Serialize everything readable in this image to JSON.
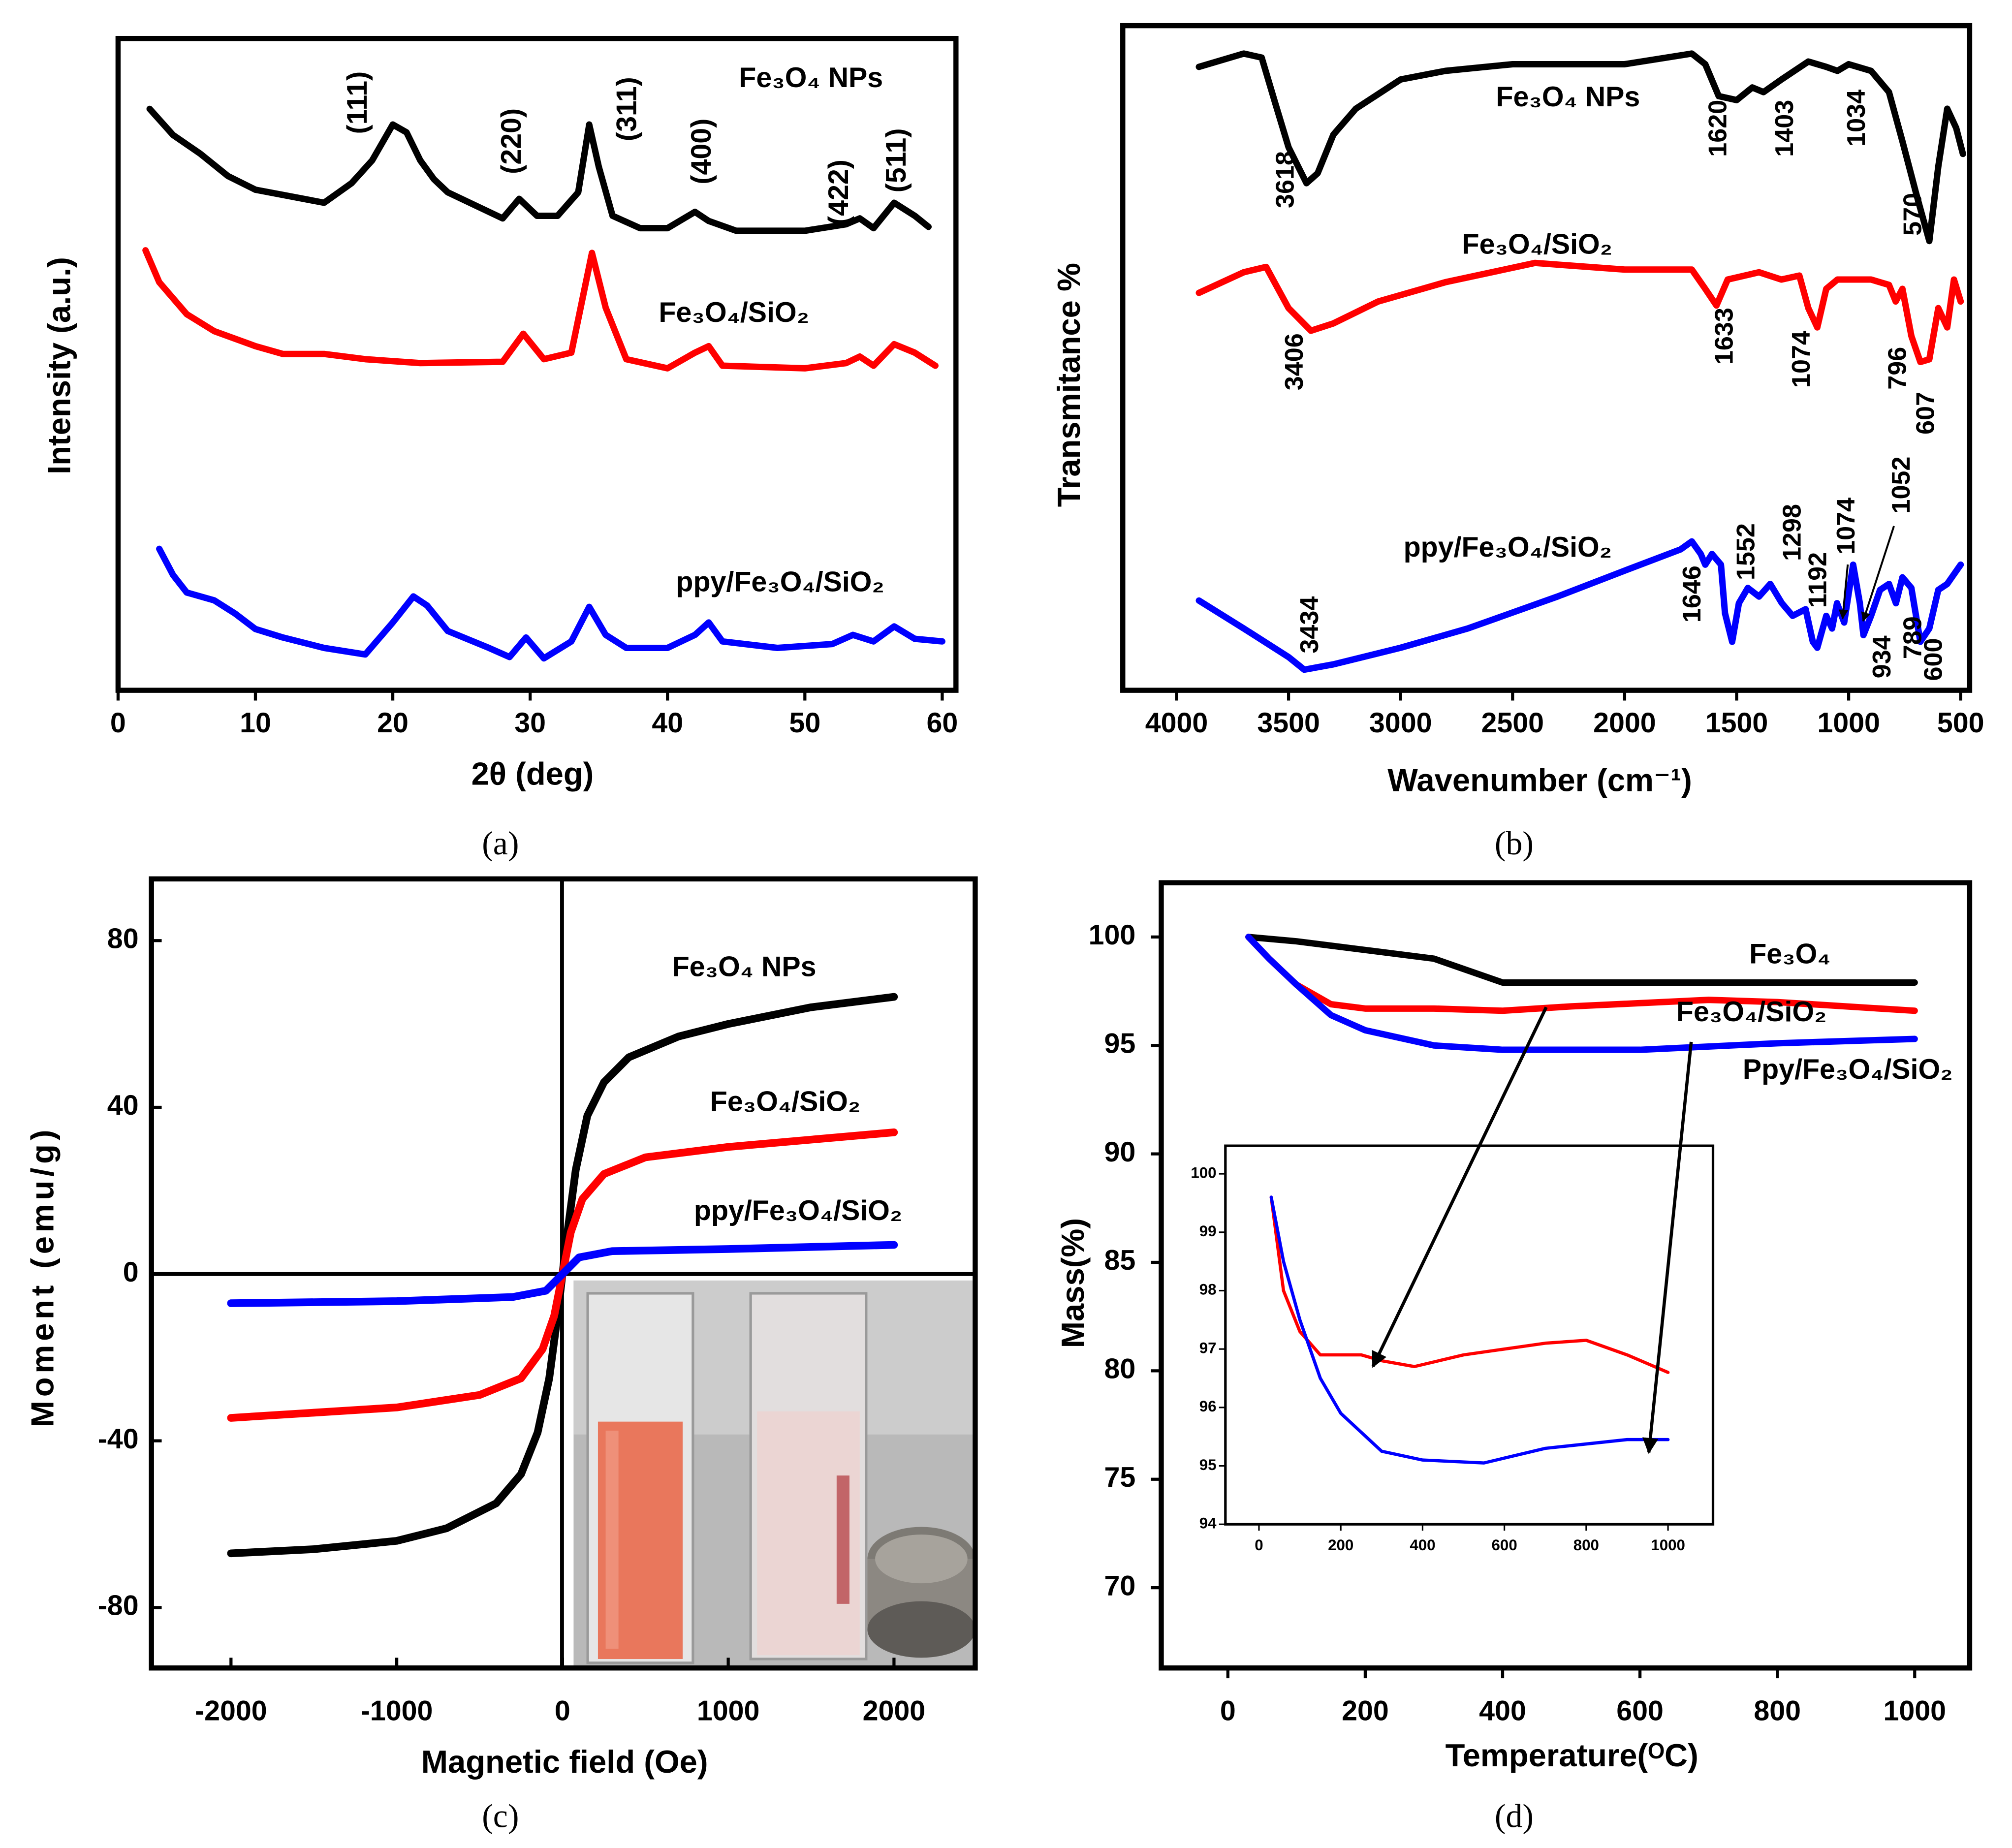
{
  "chart_data": [
    {
      "type": "line",
      "label": "(a)",
      "x_label": "2θ (deg)",
      "y_label": "Intensity (a.u.)",
      "xlim": [
        0,
        61
      ],
      "xticks": [
        0,
        10,
        20,
        30,
        40,
        50,
        60
      ],
      "ylim": [
        0,
        100
      ],
      "series": [
        {
          "name": "Fe₃O₄ NPs",
          "color": "#000000",
          "x": [
            2.3,
            4,
            6,
            8,
            10,
            12,
            15,
            17,
            18.5,
            20,
            21,
            22,
            23,
            24,
            26,
            28,
            29.2,
            30.5,
            32,
            33.5,
            34.3,
            35,
            36,
            38,
            40,
            42,
            43,
            45,
            50,
            53,
            54,
            55,
            56.5,
            58,
            59
          ],
          "values": [
            89.2,
            85.2,
            82.3,
            78.9,
            76.8,
            76.0,
            74.8,
            77.8,
            81.3,
            86.8,
            85.6,
            81.3,
            78.4,
            76.4,
            74.4,
            72.4,
            75.4,
            72.8,
            72.8,
            76.4,
            86.8,
            80.3,
            72.8,
            70.9,
            70.9,
            73.4,
            72.0,
            70.5,
            70.5,
            71.5,
            72.4,
            70.9,
            74.8,
            72.8,
            71.1
          ]
        },
        {
          "name": "Fe₃O₄/SiO₂",
          "color": "#ff0000",
          "x": [
            2,
            3,
            5,
            7,
            10,
            12,
            15,
            18,
            22,
            28,
            29.5,
            31,
            33,
            34.5,
            35.5,
            37,
            40,
            42,
            43,
            44,
            50,
            53,
            54,
            55,
            56.5,
            58,
            59.5
          ],
          "values": [
            67.5,
            62.6,
            57.7,
            55.1,
            52.8,
            51.6,
            51.6,
            50.8,
            50.2,
            50.4,
            54.7,
            50.8,
            51.8,
            67.1,
            58.7,
            50.8,
            49.4,
            51.8,
            52.8,
            49.8,
            49.4,
            50.2,
            51.2,
            49.8,
            53.1,
            51.8,
            49.8
          ]
        },
        {
          "name": "ppy/Fe₃O₄/SiO₂",
          "color": "#0000ff",
          "x": [
            3,
            4,
            5,
            7,
            8.5,
            10,
            12,
            15,
            18,
            20,
            21.5,
            22.5,
            24,
            27,
            28.5,
            29.7,
            31,
            33,
            34.3,
            35.5,
            37,
            40,
            42,
            43,
            44,
            48,
            52,
            53.5,
            55,
            56.5,
            58,
            60
          ],
          "values": [
            21.7,
            17.7,
            15.0,
            13.8,
            11.8,
            9.4,
            8.1,
            6.5,
            5.5,
            10.4,
            14.4,
            13.0,
            9.1,
            6.5,
            5.1,
            8.1,
            4.9,
            7.5,
            12.8,
            8.5,
            6.5,
            6.5,
            8.5,
            10.4,
            7.5,
            6.5,
            7.1,
            8.5,
            7.5,
            9.8,
            7.9,
            7.5
          ]
        }
      ],
      "annotations": [
        "(111)",
        "(220)",
        "(311)",
        "(400)",
        "(422)",
        "(511)"
      ]
    },
    {
      "type": "line",
      "label": "(b)",
      "x_label": "Wavenumber (cm⁻¹)",
      "y_label": "Transmitance %",
      "xlim": [
        4240,
        460
      ],
      "xticks": [
        4000,
        3500,
        3000,
        2500,
        2000,
        1500,
        1000,
        500
      ],
      "ylim": [
        0,
        100
      ],
      "series": [
        {
          "name": "Fe₃O₄ NPs",
          "color": "#000000",
          "x": [
            3900,
            3700,
            3620,
            3560,
            3500,
            3420,
            3370,
            3300,
            3200,
            3000,
            2800,
            2500,
            2000,
            1700,
            1640,
            1580,
            1500,
            1430,
            1380,
            1300,
            1180,
            1100,
            1050,
            1000,
            900,
            820,
            760,
            700,
            640,
            600,
            560,
            520,
            490
          ],
          "values": [
            93.8,
            95.8,
            95.2,
            88.4,
            81.7,
            76.3,
            77.8,
            83.6,
            87.5,
            91.9,
            93.2,
            94.2,
            94.2,
            95.8,
            94.2,
            89.4,
            88.8,
            90.7,
            90.0,
            91.9,
            94.6,
            93.8,
            93.2,
            94.2,
            93.2,
            90.0,
            82.6,
            74.9,
            67.6,
            78.8,
            87.5,
            84.6,
            80.7
          ]
        },
        {
          "name": "Fe₃O₄/SiO₂",
          "color": "#ff0000",
          "x": [
            3900,
            3700,
            3600,
            3500,
            3400,
            3300,
            3100,
            2800,
            2400,
            2000,
            1700,
            1640,
            1590,
            1540,
            1400,
            1300,
            1220,
            1180,
            1140,
            1100,
            1050,
            900,
            820,
            790,
            760,
            720,
            680,
            640,
            600,
            560,
            530,
            500
          ],
          "values": [
            59.8,
            62.9,
            63.7,
            57.5,
            54.1,
            55.2,
            58.5,
            61.4,
            64.3,
            63.3,
            63.3,
            60.4,
            57.9,
            61.8,
            62.9,
            61.8,
            62.4,
            57.5,
            54.6,
            60.4,
            61.8,
            61.8,
            61.0,
            58.5,
            60.4,
            53.3,
            49.4,
            49.8,
            57.5,
            54.6,
            61.8,
            58.5
          ]
        },
        {
          "name": "ppy/Fe₃O₄/SiO₂",
          "color": "#0000ff",
          "x": [
            3900,
            3700,
            3500,
            3430,
            3300,
            3000,
            2700,
            2300,
            2000,
            1750,
            1700,
            1660,
            1640,
            1610,
            1570,
            1552,
            1520,
            1490,
            1450,
            1400,
            1350,
            1298,
            1250,
            1192,
            1160,
            1140,
            1100,
            1074,
            1052,
            1020,
            980,
            950,
            934,
            900,
            860,
            820,
            789,
            760,
            720,
            680,
            640,
            600,
            560,
            500
          ],
          "values": [
            13.5,
            9.3,
            5.0,
            3.1,
            3.9,
            6.4,
            9.3,
            14.1,
            18.0,
            21.2,
            22.4,
            20.5,
            18.9,
            20.5,
            18.9,
            11.6,
            7.3,
            13.1,
            15.4,
            14.1,
            16.0,
            13.1,
            11.2,
            12.2,
            7.3,
            6.4,
            11.2,
            9.3,
            13.1,
            10.2,
            18.9,
            13.1,
            8.3,
            11.2,
            15.1,
            16.0,
            13.1,
            17.0,
            15.4,
            7.3,
            9.3,
            15.1,
            16.0,
            18.9
          ]
        }
      ],
      "annotations": [
        "3618",
        "1620",
        "1403",
        "1034",
        "570",
        "3406",
        "1633",
        "1074",
        "796",
        "607",
        "3434",
        "1646",
        "1552",
        "1298",
        "1192",
        "1074",
        "1052",
        "934",
        "789",
        "600"
      ]
    },
    {
      "type": "line",
      "label": "(c)",
      "x_label": "Magnetic field (Oe)",
      "y_label": "Moment (emu/g)",
      "xlim": [
        -2480,
        2490
      ],
      "xticks": [
        -2000,
        -1000,
        0,
        1000,
        2000
      ],
      "ylim": [
        -94.5,
        94.8
      ],
      "yticks": [
        80,
        40,
        0,
        -40,
        -80
      ],
      "series": [
        {
          "name": "Fe₃O₄ NPs",
          "color": "#000000",
          "x": [
            -2000,
            -1500,
            -1000,
            -700,
            -400,
            -250,
            -150,
            -80,
            -30,
            0,
            30,
            80,
            150,
            250,
            400,
            700,
            1000,
            1500,
            2000
          ],
          "values": [
            -67,
            -66,
            -64,
            -61,
            -55,
            -48,
            -38,
            -25,
            -10,
            0,
            10,
            25,
            38,
            46,
            52,
            57,
            60,
            64,
            66.5
          ]
        },
        {
          "name": "Fe₃O₄/SiO₂",
          "color": "#ff0000",
          "x": [
            -2000,
            -1000,
            -500,
            -250,
            -120,
            -50,
            0,
            50,
            120,
            250,
            500,
            1000,
            2000
          ],
          "values": [
            -34.5,
            -32,
            -29,
            -25,
            -18,
            -10,
            0,
            10,
            18,
            24,
            28,
            30.5,
            34
          ]
        },
        {
          "name": "ppy/Fe₃O₄/SiO₂",
          "color": "#0000ff",
          "x": [
            -2000,
            -1000,
            -300,
            -100,
            0,
            100,
            300,
            1000,
            2000
          ],
          "values": [
            -7,
            -6.5,
            -5.5,
            -4,
            0,
            4,
            5.5,
            6,
            7
          ]
        }
      ]
    },
    {
      "type": "line",
      "label": "(d)",
      "x_label": "Temperature(ᴼC)",
      "y_label": "Mass(%)",
      "xlim": [
        -97,
        1080
      ],
      "xticks": [
        0,
        200,
        400,
        600,
        800,
        1000
      ],
      "ylim": [
        66.3,
        102.5
      ],
      "yticks": [
        70,
        75,
        80,
        85,
        90,
        95,
        100
      ],
      "series": [
        {
          "name": "Fe₃O₄",
          "color": "#000000",
          "x": [
            30,
            100,
            200,
            300,
            400,
            600,
            1000
          ],
          "values": [
            100,
            99.8,
            99.4,
            99.0,
            97.9,
            97.9,
            97.9
          ]
        },
        {
          "name": "Fe₃O₄/SiO₂",
          "color": "#ff0000",
          "x": [
            30,
            60,
            100,
            150,
            200,
            300,
            400,
            500,
            700,
            800,
            1000
          ],
          "values": [
            100,
            99,
            97.8,
            96.9,
            96.7,
            96.7,
            96.6,
            96.8,
            97.1,
            97.0,
            96.6
          ]
        },
        {
          "name": "Ppy/Fe₃O₄/SiO₂",
          "color": "#0000ff",
          "x": [
            30,
            60,
            100,
            150,
            200,
            300,
            400,
            600,
            800,
            1000
          ],
          "values": [
            100,
            99,
            97.8,
            96.4,
            95.7,
            95.0,
            94.8,
            94.8,
            95.1,
            95.3
          ]
        }
      ],
      "inset": {
        "xlim": [
          -82,
          1110
        ],
        "xticks": [
          0,
          200,
          400,
          600,
          800,
          1000
        ],
        "ylim": [
          94.0,
          100.48
        ],
        "yticks": [
          94,
          95,
          96,
          97,
          98,
          99,
          100
        ],
        "series": [
          {
            "color": "#ff0000",
            "x": [
              30,
              60,
              100,
              150,
              200,
              250,
              300,
              380,
              500,
              700,
              800,
              900,
              1000
            ],
            "values": [
              99.6,
              98,
              97.3,
              96.9,
              96.9,
              96.9,
              96.8,
              96.7,
              96.9,
              97.1,
              97.15,
              96.9,
              96.6
            ]
          },
          {
            "color": "#0000ff",
            "x": [
              30,
              60,
              100,
              150,
              200,
              300,
              400,
              550,
              700,
              900,
              1000
            ],
            "values": [
              99.6,
              98.5,
              97.5,
              96.5,
              95.9,
              95.25,
              95.1,
              95.05,
              95.3,
              95.45,
              95.45
            ]
          }
        ]
      }
    }
  ]
}
